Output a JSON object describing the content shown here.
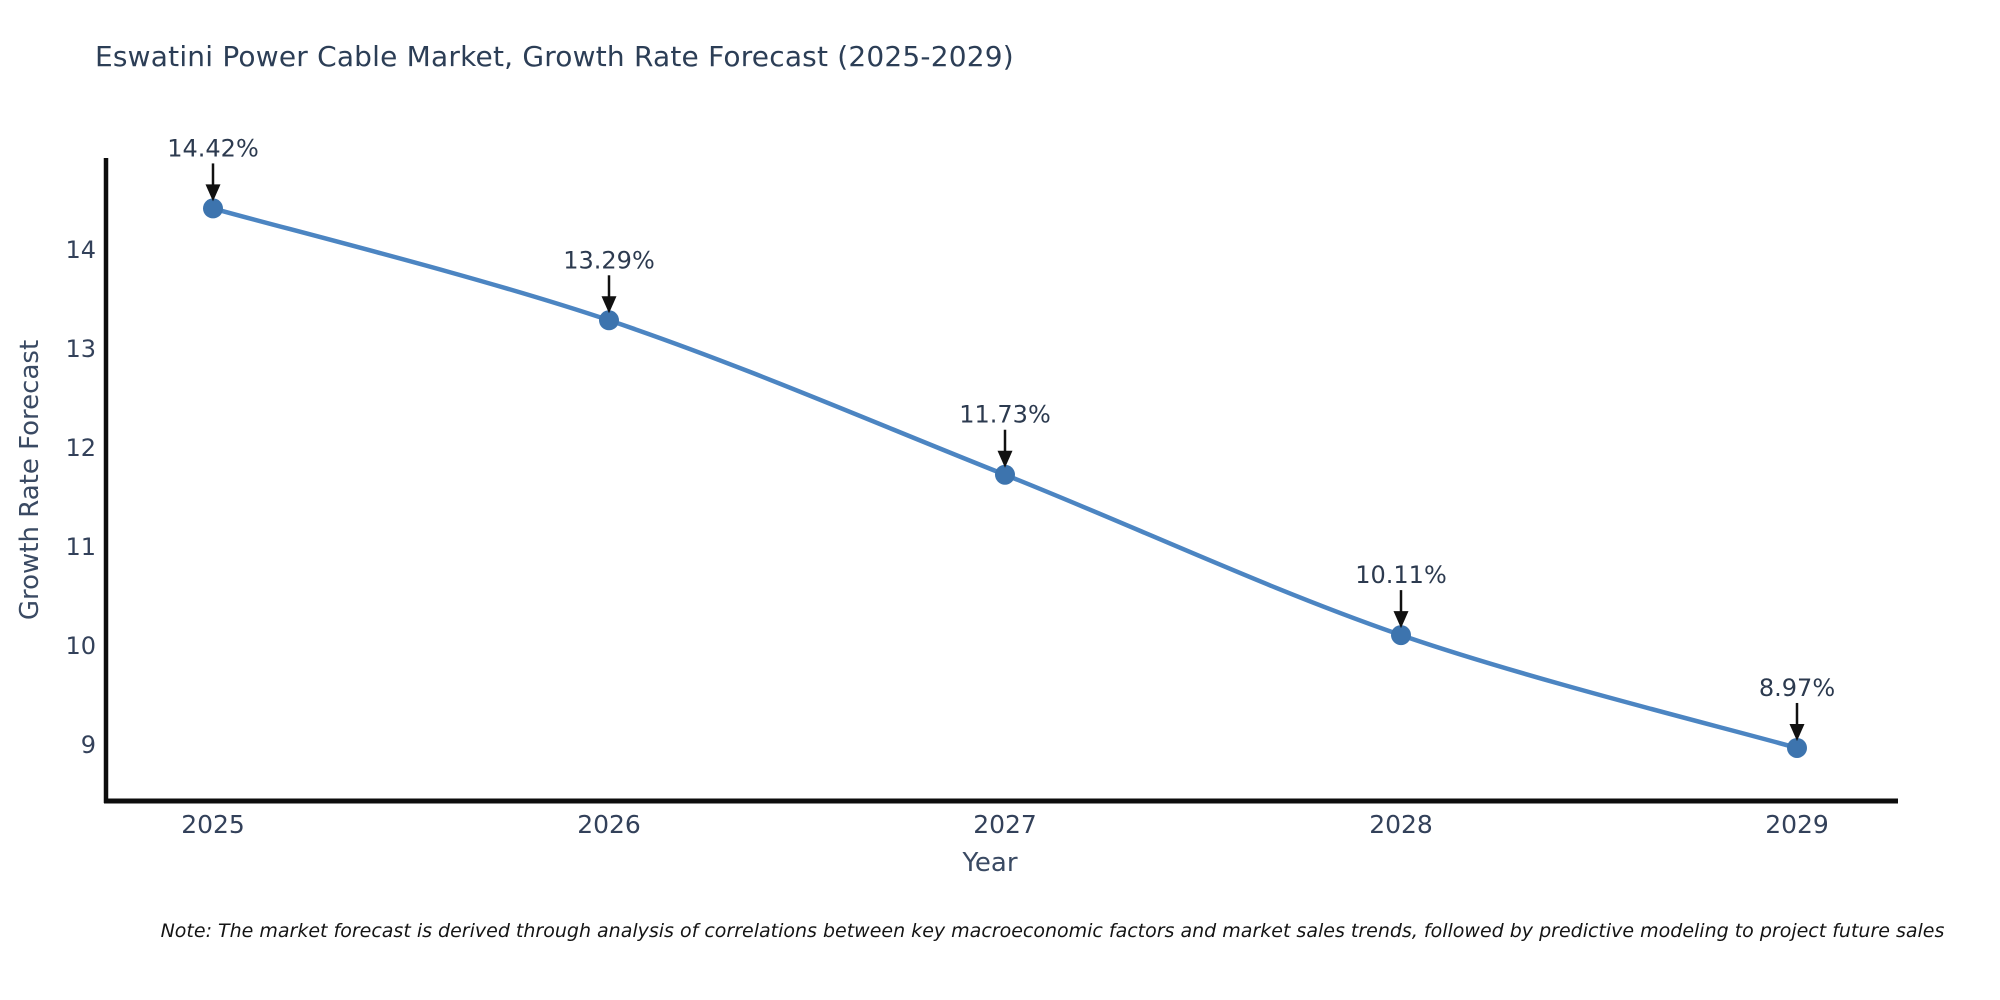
{
  "title": "Eswatini Power Cable Market, Growth Rate Forecast (2025-2029)",
  "footnote": "Note: The market forecast is derived through analysis of correlations between key macroeconomic factors and market sales trends, followed by predictive modeling to project future sales",
  "chart_data": {
    "type": "line",
    "title": "Eswatini Power Cable Market, Growth Rate Forecast (2025-2029)",
    "xlabel": "Year",
    "ylabel": "Growth Rate Forecast",
    "x": [
      2025,
      2026,
      2027,
      2028,
      2029
    ],
    "series": [
      {
        "name": "Growth Rate Forecast",
        "values": [
          14.42,
          13.29,
          11.73,
          10.11,
          8.97
        ],
        "point_labels": [
          "14.42%",
          "13.29%",
          "11.73%",
          "10.11%",
          "8.97%"
        ]
      }
    ],
    "yticks": [
      9,
      10,
      11,
      12,
      13,
      14
    ],
    "ylim": [
      8.44,
      14.95
    ],
    "xlim": [
      2024.73,
      2029.26
    ],
    "grid": false,
    "legend_position": "none",
    "marker": "circle",
    "annotation_style": "black-down-arrow",
    "colors": {
      "line": "#4c85c2",
      "marker": "#3d74ae",
      "axis": "#0d0d0d",
      "title_text": "#2c3e56",
      "tick_text": "#33415a",
      "annotation_text": "#2c3a4f",
      "arrow": "#111111",
      "background": "#ffffff"
    }
  }
}
